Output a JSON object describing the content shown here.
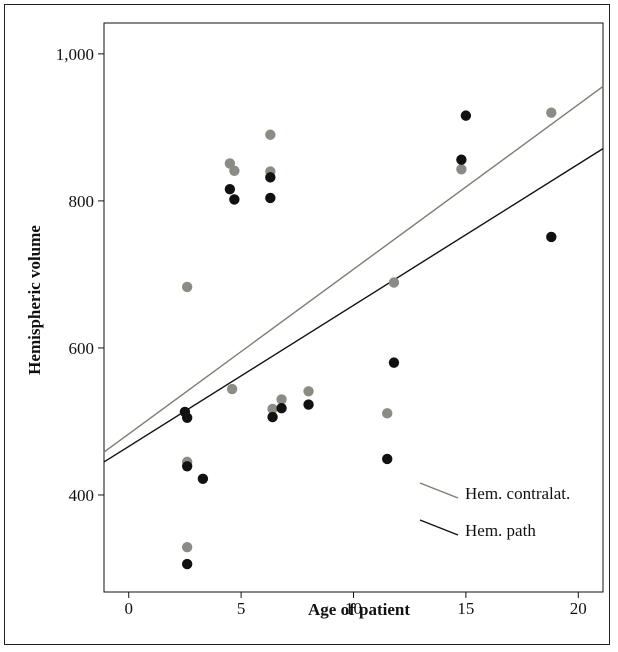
{
  "chart_data": {
    "type": "scatter",
    "xlabel": "Age of patient",
    "ylabel": "Hemispheric volume",
    "xlim": [
      -1.1,
      21.1
    ],
    "ylim": [
      268,
      1042
    ],
    "x_ticks": [
      0,
      5,
      10,
      15,
      20
    ],
    "x_tick_labels": [
      "0",
      "5",
      "10",
      "15",
      "20"
    ],
    "y_ticks": [
      400,
      600,
      800,
      1000
    ],
    "y_tick_labels": [
      "400",
      "600",
      "800",
      "1,000"
    ],
    "grid": false,
    "legend_position": "bottom-right",
    "series": [
      {
        "name": "Hem. contralat.",
        "color": "#8c8c86",
        "line_color": "#7d7d74",
        "points": [
          {
            "x": 2.6,
            "y": 683
          },
          {
            "x": 2.6,
            "y": 445
          },
          {
            "x": 2.6,
            "y": 329
          },
          {
            "x": 4.5,
            "y": 851
          },
          {
            "x": 4.7,
            "y": 841
          },
          {
            "x": 4.6,
            "y": 544
          },
          {
            "x": 6.3,
            "y": 890
          },
          {
            "x": 6.3,
            "y": 840
          },
          {
            "x": 6.4,
            "y": 517
          },
          {
            "x": 6.8,
            "y": 530
          },
          {
            "x": 8.0,
            "y": 541
          },
          {
            "x": 11.5,
            "y": 511
          },
          {
            "x": 11.8,
            "y": 689
          },
          {
            "x": 14.8,
            "y": 843
          },
          {
            "x": 18.8,
            "y": 920
          }
        ],
        "fit": {
          "intercept": 483,
          "slope": 22.4
        }
      },
      {
        "name": "Hem. path",
        "color": "#111111",
        "line_color": "#111111",
        "points": [
          {
            "x": 2.5,
            "y": 513
          },
          {
            "x": 2.6,
            "y": 505
          },
          {
            "x": 2.6,
            "y": 439
          },
          {
            "x": 2.6,
            "y": 306
          },
          {
            "x": 3.3,
            "y": 422
          },
          {
            "x": 4.5,
            "y": 816
          },
          {
            "x": 4.7,
            "y": 802
          },
          {
            "x": 6.3,
            "y": 832
          },
          {
            "x": 6.3,
            "y": 804
          },
          {
            "x": 6.4,
            "y": 506
          },
          {
            "x": 6.8,
            "y": 518
          },
          {
            "x": 8.0,
            "y": 523
          },
          {
            "x": 11.5,
            "y": 449
          },
          {
            "x": 11.8,
            "y": 580
          },
          {
            "x": 14.8,
            "y": 856
          },
          {
            "x": 15.0,
            "y": 916
          },
          {
            "x": 18.8,
            "y": 751
          }
        ],
        "fit": {
          "intercept": 466,
          "slope": 19.2
        }
      }
    ]
  }
}
